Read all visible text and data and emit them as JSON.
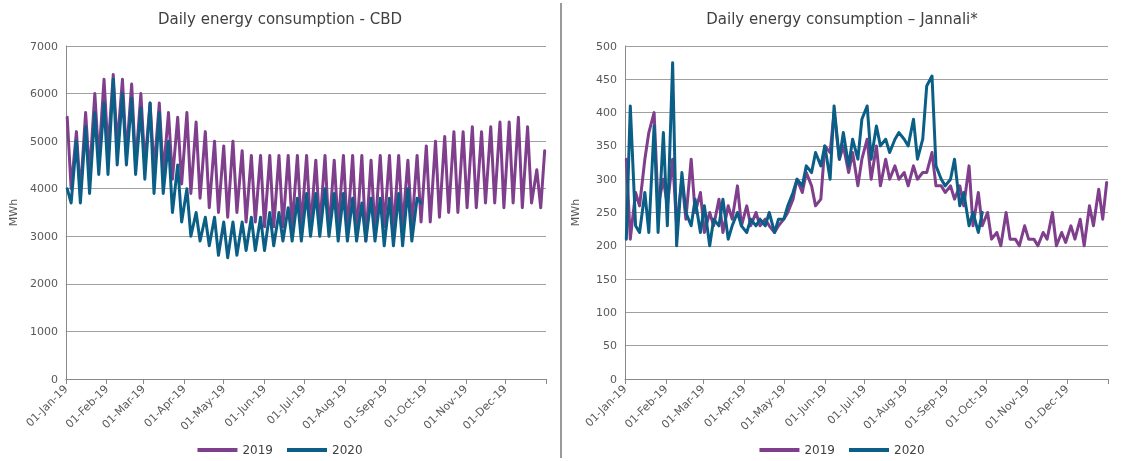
{
  "chart_data": [
    {
      "type": "line",
      "title": "Daily energy consumption - CBD",
      "ylabel": "MWh",
      "grid": "y",
      "legend": "bottom",
      "marker": "none",
      "line_style": "solid",
      "xlim": [
        "2019-01-01",
        "2020-01-01"
      ],
      "xticks": [
        {
          "value": "2019-01-01",
          "label": "01-Jan-19"
        },
        {
          "value": "2019-02-01",
          "label": "01-Feb-19"
        },
        {
          "value": "2019-03-01",
          "label": "01-Mar-19"
        },
        {
          "value": "2019-04-01",
          "label": "01-Apr-19"
        },
        {
          "value": "2019-05-01",
          "label": "01-May-19"
        },
        {
          "value": "2019-06-01",
          "label": "01-Jun-19"
        },
        {
          "value": "2019-07-01",
          "label": "01-Jul-19"
        },
        {
          "value": "2019-08-01",
          "label": "01-Aug-19"
        },
        {
          "value": "2019-09-01",
          "label": "01-Sep-19"
        },
        {
          "value": "2019-10-01",
          "label": "01-Oct-19"
        },
        {
          "value": "2019-11-01",
          "label": "01-Nov-19"
        },
        {
          "value": "2019-12-01",
          "label": "01-Dec-19"
        },
        {
          "value": "2020-01-01",
          "label": null
        }
      ],
      "ylim": [
        0,
        7000
      ],
      "yticks": [
        0,
        1000,
        2000,
        3000,
        4000,
        5000,
        6000,
        7000
      ],
      "x": [
        "2019-01-02",
        "2019-01-05",
        "2019-01-09",
        "2019-01-12",
        "2019-01-16",
        "2019-01-19",
        "2019-01-23",
        "2019-01-26",
        "2019-01-30",
        "2019-02-02",
        "2019-02-06",
        "2019-02-09",
        "2019-02-13",
        "2019-02-16",
        "2019-02-20",
        "2019-02-23",
        "2019-02-27",
        "2019-03-02",
        "2019-03-06",
        "2019-03-09",
        "2019-03-13",
        "2019-03-16",
        "2019-03-20",
        "2019-03-23",
        "2019-03-27",
        "2019-03-30",
        "2019-04-03",
        "2019-04-06",
        "2019-04-10",
        "2019-04-13",
        "2019-04-17",
        "2019-04-20",
        "2019-04-24",
        "2019-04-27",
        "2019-05-01",
        "2019-05-04",
        "2019-05-08",
        "2019-05-11",
        "2019-05-15",
        "2019-05-18",
        "2019-05-22",
        "2019-05-25",
        "2019-05-29",
        "2019-06-01",
        "2019-06-05",
        "2019-06-08",
        "2019-06-12",
        "2019-06-15",
        "2019-06-19",
        "2019-06-22",
        "2019-06-26",
        "2019-06-29",
        "2019-07-03",
        "2019-07-06",
        "2019-07-10",
        "2019-07-13",
        "2019-07-17",
        "2019-07-20",
        "2019-07-24",
        "2019-07-27",
        "2019-07-31",
        "2019-08-03",
        "2019-08-07",
        "2019-08-10",
        "2019-08-14",
        "2019-08-17",
        "2019-08-21",
        "2019-08-24",
        "2019-08-28",
        "2019-08-31",
        "2019-09-04",
        "2019-09-07",
        "2019-09-11",
        "2019-09-14",
        "2019-09-18",
        "2019-09-21",
        "2019-09-25",
        "2019-09-28",
        "2019-10-02",
        "2019-10-05",
        "2019-10-09",
        "2019-10-12",
        "2019-10-16",
        "2019-10-19",
        "2019-10-23",
        "2019-10-26",
        "2019-10-30",
        "2019-11-02",
        "2019-11-06",
        "2019-11-09",
        "2019-11-13",
        "2019-11-16",
        "2019-11-20",
        "2019-11-23",
        "2019-11-27",
        "2019-11-30",
        "2019-12-04",
        "2019-12-07",
        "2019-12-11",
        "2019-12-14",
        "2019-12-18",
        "2019-12-21",
        "2019-12-25",
        "2019-12-28",
        "2019-12-31"
      ],
      "series": [
        {
          "name": "2019",
          "color": "#7f3f8c",
          "values": [
            5500,
            4000,
            5200,
            3900,
            5600,
            4300,
            6000,
            4600,
            6300,
            4800,
            6400,
            4900,
            6300,
            4700,
            6200,
            4500,
            6000,
            4500,
            5800,
            4400,
            5800,
            4300,
            5600,
            4200,
            5500,
            4100,
            5600,
            3900,
            5400,
            3800,
            5200,
            3600,
            5000,
            3500,
            4900,
            3400,
            5000,
            3500,
            4800,
            3300,
            4700,
            3300,
            4700,
            3200,
            4700,
            3200,
            4700,
            3200,
            4700,
            3200,
            4700,
            3200,
            4700,
            3200,
            4600,
            3200,
            4700,
            3100,
            4600,
            3200,
            4700,
            3100,
            4700,
            3000,
            4700,
            2900,
            4600,
            3100,
            4700,
            3200,
            4700,
            3100,
            4700,
            3200,
            4600,
            3200,
            4700,
            3300,
            4900,
            3300,
            5000,
            3400,
            5100,
            3500,
            5200,
            3500,
            5200,
            3600,
            5300,
            3600,
            5200,
            3700,
            5300,
            3700,
            5400,
            3600,
            5400,
            3700,
            5500,
            3600,
            5300,
            3700,
            4400,
            3600,
            4800
          ]
        },
        {
          "name": "2020",
          "color": "#0b5f86",
          "values": [
            4000,
            3700,
            5000,
            3700,
            5300,
            3900,
            5600,
            4300,
            5800,
            4300,
            6300,
            4500,
            6000,
            4500,
            5900,
            4300,
            5700,
            4200,
            5800,
            3900,
            5600,
            3900,
            5000,
            3500,
            4500,
            3300,
            4000,
            3000,
            3500,
            2900,
            3400,
            2800,
            3400,
            2600,
            3300,
            2550,
            3300,
            2600,
            3300,
            2700,
            3400,
            2700,
            3400,
            2700,
            3500,
            2800,
            3500,
            2900,
            3600,
            2900,
            3800,
            2900,
            3900,
            3000,
            3900,
            3000,
            4000,
            3000,
            3900,
            2900,
            3900,
            2900,
            3800,
            2900,
            3700,
            2900,
            3800,
            2900,
            3800,
            2800,
            3800,
            2800,
            3900,
            2800,
            4000,
            2900,
            3800,
            3700,
            null,
            null,
            null,
            null,
            null,
            null,
            null,
            null,
            null,
            null,
            null,
            null,
            null,
            null,
            null,
            null,
            null,
            null,
            null,
            null,
            null,
            null,
            null,
            null,
            null,
            null,
            null
          ]
        }
      ]
    },
    {
      "type": "line",
      "title": "Daily energy consumption – Jannali*",
      "ylabel": "MWh",
      "grid": "y",
      "legend": "bottom",
      "marker": "none",
      "line_style": "solid",
      "xlim": [
        "2019-01-01",
        "2020-01-01"
      ],
      "xticks": [
        {
          "value": "2019-01-01",
          "label": "01-Jan-19"
        },
        {
          "value": "2019-02-01",
          "label": "01-Feb-19"
        },
        {
          "value": "2019-03-01",
          "label": "01-Mar-19"
        },
        {
          "value": "2019-04-01",
          "label": "01-Apr-19"
        },
        {
          "value": "2019-05-01",
          "label": "01-May-19"
        },
        {
          "value": "2019-06-01",
          "label": "01-Jun-19"
        },
        {
          "value": "2019-07-01",
          "label": "01-Jul-19"
        },
        {
          "value": "2019-08-01",
          "label": "01-Aug-19"
        },
        {
          "value": "2019-09-01",
          "label": "01-Sep-19"
        },
        {
          "value": "2019-10-01",
          "label": "01-Oct-19"
        },
        {
          "value": "2019-11-01",
          "label": "01-Nov-19"
        },
        {
          "value": "2019-12-01",
          "label": "01-Dec-19"
        },
        {
          "value": "2020-01-01",
          "label": null
        }
      ],
      "ylim": [
        0,
        500
      ],
      "yticks": [
        0,
        50,
        100,
        150,
        200,
        250,
        300,
        350,
        400,
        450,
        500
      ],
      "x": [
        "2019-01-02",
        "2019-01-05",
        "2019-01-09",
        "2019-01-12",
        "2019-01-16",
        "2019-01-19",
        "2019-01-23",
        "2019-01-26",
        "2019-01-30",
        "2019-02-02",
        "2019-02-06",
        "2019-02-09",
        "2019-02-13",
        "2019-02-16",
        "2019-02-20",
        "2019-02-23",
        "2019-02-27",
        "2019-03-02",
        "2019-03-06",
        "2019-03-09",
        "2019-03-13",
        "2019-03-16",
        "2019-03-20",
        "2019-03-23",
        "2019-03-27",
        "2019-03-30",
        "2019-04-03",
        "2019-04-06",
        "2019-04-10",
        "2019-04-13",
        "2019-04-17",
        "2019-04-20",
        "2019-04-24",
        "2019-04-27",
        "2019-05-01",
        "2019-05-04",
        "2019-05-08",
        "2019-05-11",
        "2019-05-15",
        "2019-05-18",
        "2019-05-22",
        "2019-05-25",
        "2019-05-29",
        "2019-06-01",
        "2019-06-05",
        "2019-06-08",
        "2019-06-12",
        "2019-06-15",
        "2019-06-19",
        "2019-06-22",
        "2019-06-26",
        "2019-06-29",
        "2019-07-03",
        "2019-07-06",
        "2019-07-10",
        "2019-07-13",
        "2019-07-17",
        "2019-07-20",
        "2019-07-24",
        "2019-07-27",
        "2019-07-31",
        "2019-08-03",
        "2019-08-07",
        "2019-08-10",
        "2019-08-14",
        "2019-08-17",
        "2019-08-21",
        "2019-08-24",
        "2019-08-28",
        "2019-08-31",
        "2019-09-04",
        "2019-09-07",
        "2019-09-11",
        "2019-09-14",
        "2019-09-18",
        "2019-09-21",
        "2019-09-25",
        "2019-09-28",
        "2019-10-02",
        "2019-10-05",
        "2019-10-09",
        "2019-10-12",
        "2019-10-16",
        "2019-10-19",
        "2019-10-23",
        "2019-10-26",
        "2019-10-30",
        "2019-11-02",
        "2019-11-06",
        "2019-11-09",
        "2019-11-13",
        "2019-11-16",
        "2019-11-20",
        "2019-11-23",
        "2019-11-27",
        "2019-11-30",
        "2019-12-04",
        "2019-12-07",
        "2019-12-11",
        "2019-12-14",
        "2019-12-18",
        "2019-12-21",
        "2019-12-25",
        "2019-12-28",
        "2019-12-31"
      ],
      "series": [
        {
          "name": "2019",
          "color": "#7f3f8c",
          "values": [
            330,
            210,
            280,
            260,
            330,
            370,
            400,
            260,
            300,
            260,
            330,
            230,
            300,
            240,
            330,
            250,
            280,
            220,
            250,
            230,
            270,
            220,
            260,
            240,
            290,
            230,
            260,
            230,
            250,
            230,
            240,
            230,
            220,
            230,
            240,
            250,
            270,
            300,
            280,
            310,
            290,
            260,
            270,
            350,
            340,
            400,
            330,
            350,
            310,
            340,
            290,
            330,
            360,
            300,
            350,
            290,
            330,
            300,
            320,
            300,
            310,
            290,
            320,
            300,
            310,
            310,
            340,
            290,
            290,
            280,
            290,
            270,
            290,
            260,
            320,
            230,
            280,
            230,
            250,
            210,
            220,
            200,
            250,
            210,
            210,
            200,
            230,
            210,
            210,
            200,
            220,
            210,
            250,
            200,
            220,
            205,
            230,
            210,
            240,
            200,
            260,
            230,
            285,
            240,
            295
          ]
        },
        {
          "name": "2020",
          "color": "#0b5f86",
          "values": [
            210,
            410,
            230,
            220,
            280,
            220,
            380,
            220,
            370,
            230,
            475,
            200,
            310,
            250,
            230,
            270,
            220,
            260,
            200,
            240,
            230,
            270,
            210,
            230,
            250,
            230,
            220,
            240,
            230,
            240,
            230,
            250,
            220,
            240,
            240,
            260,
            280,
            300,
            290,
            320,
            310,
            340,
            320,
            350,
            300,
            410,
            330,
            370,
            320,
            360,
            330,
            390,
            410,
            330,
            380,
            350,
            360,
            340,
            360,
            370,
            360,
            350,
            390,
            330,
            360,
            440,
            455,
            320,
            300,
            290,
            300,
            330,
            260,
            280,
            230,
            250,
            220,
            250,
            null,
            null,
            null,
            null,
            null,
            null,
            null,
            null,
            null,
            null,
            null,
            null,
            null,
            null,
            null,
            null,
            null,
            null,
            null,
            null,
            null,
            null,
            null,
            null,
            null,
            null,
            null
          ]
        }
      ]
    }
  ]
}
